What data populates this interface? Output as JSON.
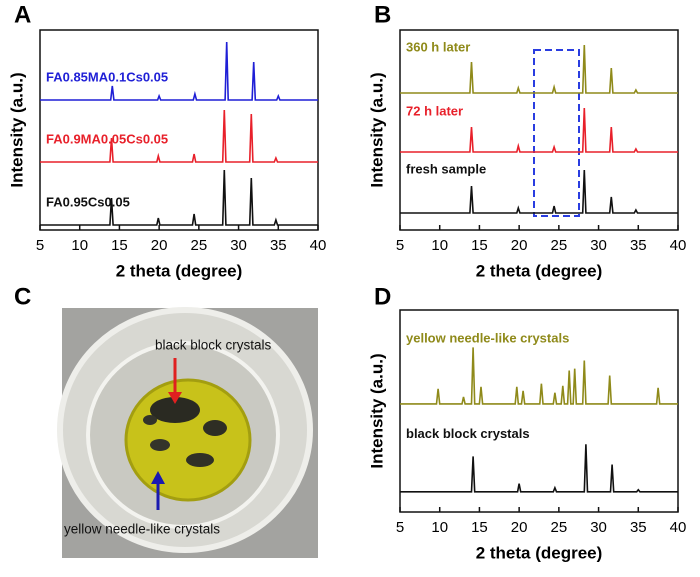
{
  "chart_data": [
    {
      "type": "line",
      "label": "A",
      "xlabel": "2 theta (degree)",
      "ylabel": "Intensity (a.u.)",
      "xlim": [
        5,
        40
      ],
      "xticks": [
        5,
        10,
        15,
        20,
        25,
        30,
        35,
        40
      ],
      "ylim": [
        0,
        100
      ],
      "series": [
        {
          "name": "FA0.85MA0.1Cs0.05",
          "color": "#1f1fd6",
          "x": [
            5,
            13.9,
            14.1,
            14.3,
            19.8,
            20,
            20.2,
            24.3,
            24.5,
            24.7,
            28.3,
            28.5,
            28.7,
            31.7,
            31.9,
            32.1,
            34.8,
            35,
            35.2,
            40
          ],
          "values": [
            65,
            65,
            72,
            65,
            65,
            67,
            65,
            65,
            68,
            65,
            65,
            94,
            65,
            65,
            84,
            65,
            65,
            67,
            65,
            65
          ]
        },
        {
          "name": "FA0.9MA0.05Cs0.05",
          "color": "#e8202a",
          "x": [
            5,
            13.8,
            14,
            14.2,
            19.7,
            19.9,
            20.1,
            24.2,
            24.4,
            24.6,
            28,
            28.2,
            28.4,
            31.4,
            31.6,
            31.8,
            34.5,
            34.7,
            34.9,
            40
          ],
          "values": [
            34,
            34,
            46,
            34,
            34,
            37,
            34,
            34,
            38,
            34,
            34,
            60,
            34,
            34,
            58,
            34,
            34,
            36,
            34,
            34
          ]
        },
        {
          "name": "FA0.95Cs0.05",
          "color": "#111111",
          "x": [
            5,
            13.8,
            14,
            14.2,
            19.7,
            19.9,
            20.1,
            24.2,
            24.4,
            24.6,
            28,
            28.2,
            28.4,
            31.4,
            31.6,
            31.8,
            34.5,
            34.7,
            34.9,
            40
          ],
          "values": [
            2.5,
            2.5,
            16,
            2.5,
            2.5,
            6,
            2.5,
            2.5,
            8,
            2.5,
            2.5,
            30,
            2.5,
            2.5,
            26,
            2.5,
            2.5,
            5,
            2.5,
            2.5
          ]
        }
      ]
    },
    {
      "type": "line",
      "label": "B",
      "xlabel": "2 theta (degree)",
      "ylabel": "Intensity (a.u.)",
      "xlim": [
        5,
        40
      ],
      "xticks": [
        5,
        10,
        15,
        20,
        25,
        30,
        35,
        40
      ],
      "ylim": [
        0,
        100
      ],
      "series": [
        {
          "name": "360 h later",
          "color": "#8f8a1a",
          "x": [
            5,
            13.8,
            14,
            14.2,
            19.7,
            19.9,
            20.1,
            24.2,
            24.4,
            24.6,
            28,
            28.2,
            28.4,
            31.4,
            31.6,
            31.8,
            34.5,
            34.7,
            34.9,
            40
          ],
          "values": [
            68.5,
            68.5,
            84,
            68.5,
            68.5,
            71,
            68.5,
            68.5,
            71.5,
            68.5,
            68.5,
            92.5,
            68.5,
            68.5,
            81,
            68.5,
            68.5,
            70,
            68.5,
            68.5
          ]
        },
        {
          "name": "72 h later",
          "color": "#e8202a",
          "x": [
            5,
            13.8,
            14,
            14.2,
            19.7,
            19.9,
            20.1,
            24.2,
            24.4,
            24.6,
            28,
            28.2,
            28.4,
            31.4,
            31.6,
            31.8,
            34.5,
            34.7,
            34.9,
            40
          ],
          "values": [
            39,
            39,
            51.5,
            39,
            39,
            42,
            39,
            39,
            41.5,
            39,
            39,
            61,
            39,
            39,
            51.5,
            39,
            39,
            40.5,
            39,
            39
          ]
        },
        {
          "name": "fresh sample",
          "color": "#111111",
          "x": [
            5,
            13.8,
            14,
            14.2,
            19.7,
            19.9,
            20.1,
            24.2,
            24.4,
            24.6,
            28,
            28.2,
            28.4,
            31.4,
            31.6,
            31.8,
            34.5,
            34.7,
            34.9,
            40
          ],
          "values": [
            8.5,
            8.5,
            22,
            8.5,
            8.5,
            11,
            8.5,
            8.5,
            12,
            8.5,
            8.5,
            30,
            8.5,
            8.5,
            16.5,
            8.5,
            8.5,
            10,
            8.5,
            8.5
          ]
        }
      ]
    },
    {
      "type": "line",
      "label": "D",
      "xlabel": "2 theta (degree)",
      "ylabel": "Intensity (a.u.)",
      "xlim": [
        5,
        40
      ],
      "xticks": [
        5,
        10,
        15,
        20,
        25,
        30,
        35,
        40
      ],
      "ylim": [
        0,
        100
      ],
      "series": [
        {
          "name": "yellow needle-like crystals",
          "color": "#8f8a1a",
          "x": [
            5,
            9.6,
            9.8,
            10,
            12.8,
            13,
            13.2,
            14,
            14.2,
            14.4,
            15,
            15.2,
            15.4,
            19.5,
            19.7,
            19.9,
            20.3,
            20.5,
            20.7,
            22.6,
            22.8,
            23,
            24.3,
            24.5,
            24.7,
            25.3,
            25.5,
            25.7,
            26.1,
            26.3,
            26.5,
            26.8,
            27,
            27.2,
            28,
            28.2,
            28.4,
            31.2,
            31.4,
            31.6,
            37.3,
            37.5,
            37.7,
            40
          ],
          "values": [
            53.5,
            53.5,
            61,
            53.5,
            53.5,
            57,
            53.5,
            53.5,
            81.5,
            53.5,
            53.5,
            62,
            53.5,
            53.5,
            62,
            53.5,
            53.5,
            60,
            53.5,
            53.5,
            63.5,
            53.5,
            53.5,
            59,
            53.5,
            53.5,
            62.5,
            53.5,
            53.5,
            70,
            53.5,
            53.5,
            71,
            53.5,
            53.5,
            75,
            53.5,
            53.5,
            67.5,
            53.5,
            53.5,
            61.5,
            53.5,
            53.5
          ]
        },
        {
          "name": "black block crystals",
          "color": "#111111",
          "x": [
            5,
            14,
            14.2,
            14.4,
            19.8,
            20,
            20.2,
            24.3,
            24.5,
            24.7,
            28.2,
            28.4,
            28.6,
            31.5,
            31.7,
            31.9,
            34.8,
            35,
            35.2,
            40
          ],
          "values": [
            10,
            10,
            27.5,
            10,
            10,
            14,
            10,
            10,
            12,
            10,
            10,
            33.5,
            10,
            10,
            23.5,
            10,
            10,
            11,
            10,
            10
          ]
        }
      ]
    }
  ],
  "photo": {
    "label": "C",
    "annotations": [
      "black block crystals",
      "yellow needle-like crystals"
    ]
  }
}
